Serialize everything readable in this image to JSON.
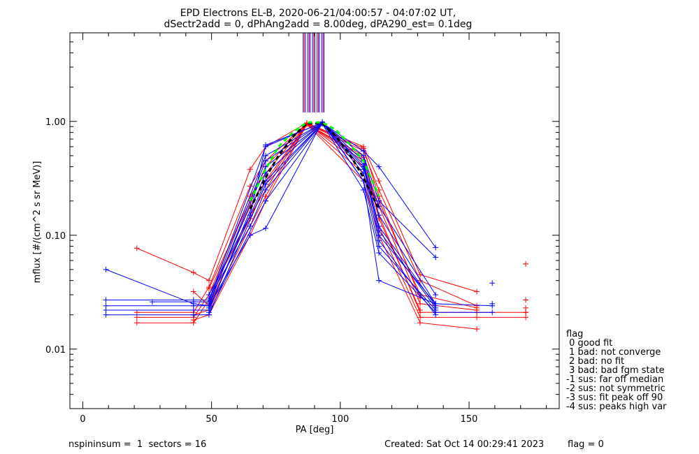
{
  "chart_data": {
    "type": "line",
    "title_line1": "EPD Electrons EL-B, 2020-06-21/04:00:57 - 04:07:02 UT,",
    "title_line2": "dSectr2add = 0, dPhAng2add = 8.00deg, dPA290_est=   0.1deg",
    "xlabel": "PA [deg]",
    "ylabel": "mflux [#/(cm^2 s sr MeV)]",
    "xlim": [
      -5,
      185
    ],
    "ylim": [
      0.003,
      6.0
    ],
    "yscale": "log",
    "x_ticks": [
      0,
      50,
      100,
      150
    ],
    "x_tick_labels": [
      "0",
      "50",
      "100",
      "150"
    ],
    "y_ticks": [
      0.01,
      0.1,
      1.0
    ],
    "y_tick_labels": [
      "0.01",
      "0.10",
      "1.00"
    ],
    "colors": {
      "red": "#ff0000",
      "blue": "#0000ff",
      "black": "#000000",
      "green": "#00ff00"
    },
    "vertical_lines": {
      "y_from": 1.2,
      "y_to": 6.0,
      "x_blue": [
        85.6,
        86.5,
        87.4,
        88.3,
        89.2,
        90.1,
        91.0,
        91.9,
        92.8,
        93.7
      ],
      "x_red": [
        86.0,
        87.9,
        89.7,
        91.5,
        93.3
      ]
    },
    "curves": {
      "blue": [
        {
          "x": [
            9,
            43,
            49,
            65,
            71,
            93,
            109,
            115,
            137
          ],
          "y": [
            0.05,
            0.025,
            0.024,
            0.1,
            0.115,
            0.99,
            0.3,
            0.04,
            0.025
          ]
        },
        {
          "x": [
            9,
            43,
            49,
            71,
            93,
            109,
            115,
            137
          ],
          "y": [
            0.027,
            0.027,
            0.027,
            0.6,
            0.98,
            0.4,
            0.1,
            0.025
          ]
        },
        {
          "x": [
            9,
            43,
            49,
            71,
            93,
            109,
            115,
            137
          ],
          "y": [
            0.024,
            0.024,
            0.024,
            0.45,
            0.97,
            0.45,
            0.12,
            0.024
          ]
        },
        {
          "x": [
            9,
            43,
            49,
            71,
            93,
            109,
            115,
            137
          ],
          "y": [
            0.022,
            0.022,
            0.022,
            0.35,
            0.97,
            0.3,
            0.08,
            0.022
          ]
        },
        {
          "x": [
            9,
            43,
            49,
            71,
            93,
            109,
            115,
            137
          ],
          "y": [
            0.02,
            0.02,
            0.02,
            0.28,
            0.96,
            0.35,
            0.09,
            0.02
          ]
        },
        {
          "x": [
            27,
            43,
            49,
            71,
            93,
            109,
            115,
            137,
            159
          ],
          "y": [
            0.026,
            0.026,
            0.026,
            0.5,
            0.97,
            0.5,
            0.15,
            0.025,
            0.024
          ]
        },
        {
          "x": [
            49,
            65,
            71,
            93,
            109,
            115,
            137
          ],
          "y": [
            0.03,
            0.15,
            0.62,
            0.97,
            0.55,
            0.4,
            0.078
          ]
        },
        {
          "x": [
            49,
            65,
            71,
            93,
            109,
            115,
            137
          ],
          "y": [
            0.028,
            0.12,
            0.25,
            0.96,
            0.5,
            0.2,
            0.064
          ]
        },
        {
          "x": [
            49,
            71,
            93,
            109,
            115,
            137,
            159
          ],
          "y": [
            0.021,
            0.2,
            0.95,
            0.25,
            0.07,
            0.021,
            0.021
          ]
        },
        {
          "x": [
            49,
            71,
            93,
            109,
            115,
            137
          ],
          "y": [
            0.025,
            0.4,
            0.96,
            0.38,
            0.18,
            0.03
          ]
        },
        {
          "x": [
            49,
            71,
            93,
            109,
            115,
            137
          ],
          "y": [
            0.023,
            0.3,
            0.96,
            0.42,
            0.11,
            0.023
          ]
        }
      ],
      "red": [
        {
          "x": [
            21,
            43,
            49,
            65,
            71,
            87,
            109,
            115,
            131,
            153
          ],
          "y": [
            0.077,
            0.047,
            0.04,
            0.38,
            0.6,
            0.97,
            0.6,
            0.3,
            0.045,
            0.032
          ]
        },
        {
          "x": [
            21,
            43,
            49,
            65,
            71,
            87,
            109,
            115,
            131,
            153
          ],
          "y": [
            0.021,
            0.021,
            0.035,
            0.27,
            0.45,
            0.96,
            0.55,
            0.25,
            0.04,
            0.024
          ]
        },
        {
          "x": [
            21,
            43,
            49,
            65,
            71,
            87,
            109,
            115,
            131,
            153
          ],
          "y": [
            0.019,
            0.019,
            0.03,
            0.22,
            0.35,
            0.95,
            0.5,
            0.2,
            0.03,
            0.023
          ]
        },
        {
          "x": [
            21,
            43,
            49,
            65,
            71,
            87,
            109,
            115,
            131,
            153
          ],
          "y": [
            0.017,
            0.017,
            0.027,
            0.18,
            0.3,
            0.95,
            0.45,
            0.18,
            0.025,
            0.022
          ]
        },
        {
          "x": [
            43,
            49,
            65,
            71,
            87,
            109,
            115,
            131,
            153,
            172
          ],
          "y": [
            0.032,
            0.024,
            0.15,
            0.25,
            0.96,
            0.4,
            0.15,
            0.021,
            0.021,
            0.021
          ]
        },
        {
          "x": [
            43,
            49,
            65,
            71,
            87,
            109,
            115,
            131,
            153,
            172
          ],
          "y": [
            0.02,
            0.022,
            0.12,
            0.22,
            0.95,
            0.35,
            0.12,
            0.019,
            0.019,
            0.019
          ]
        },
        {
          "x": [
            43,
            49,
            65,
            71,
            87,
            109,
            115,
            131,
            153
          ],
          "y": [
            0.018,
            0.02,
            0.1,
            0.2,
            0.94,
            0.3,
            0.1,
            0.017,
            0.015
          ]
        },
        {
          "x": [
            49,
            65,
            71,
            87,
            109,
            115,
            131
          ],
          "y": [
            0.034,
            0.2,
            0.4,
            0.96,
            0.58,
            0.22,
            0.028
          ]
        },
        {
          "x": [
            49,
            65,
            71,
            87,
            109,
            115,
            131
          ],
          "y": [
            0.03,
            0.14,
            0.28,
            0.95,
            0.48,
            0.14,
            0.022
          ]
        }
      ],
      "black_dashed": {
        "x": [
          65,
          71,
          76,
          82,
          87,
          93,
          98,
          104,
          109,
          115
        ],
        "y": [
          0.17,
          0.32,
          0.5,
          0.75,
          0.96,
          0.96,
          0.75,
          0.5,
          0.32,
          0.17
        ]
      },
      "green_dashed": {
        "x": [
          65,
          71,
          76,
          82,
          87,
          93,
          98,
          104,
          109,
          115
        ],
        "y": [
          0.2,
          0.38,
          0.6,
          0.82,
          0.98,
          0.98,
          0.85,
          0.62,
          0.45,
          0.22
        ]
      }
    },
    "isolated_points": {
      "red": [
        {
          "x": 172,
          "y": 0.056
        },
        {
          "x": 172,
          "y": 0.027
        },
        {
          "x": 172,
          "y": 0.023
        },
        {
          "x": 172,
          "y": 0.021
        }
      ],
      "blue": [
        {
          "x": 159,
          "y": 0.038
        },
        {
          "x": 159,
          "y": 0.025
        }
      ]
    },
    "legend": {
      "title": "flag",
      "items": [
        " 0 good fit",
        " 1 bad: not converge",
        " 2 bad: no fit",
        " 3 bad: bad fgm state",
        "-1 sus: far off median",
        "-2 sus: not symmetric",
        "-3 sus: fit peak off 90",
        "-4 sus: peaks high var"
      ]
    },
    "footer": {
      "left": "nspininsum =  1  sectors = 16",
      "created": "Created: Sat Oct 14 00:29:41 2023",
      "flag": "flag = 0"
    }
  }
}
